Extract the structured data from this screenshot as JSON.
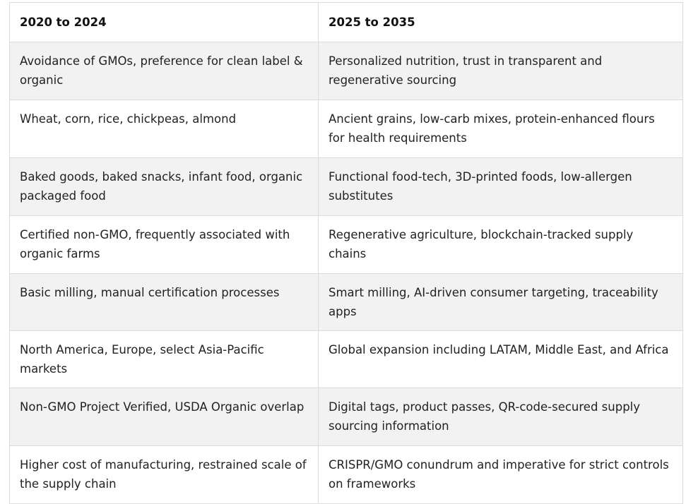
{
  "table": {
    "headers": [
      "2020 to 2024",
      "2025 to 2035"
    ],
    "rows": [
      [
        "Avoidance of GMOs, preference for clean label & organic",
        "Personalized nutrition, trust in transparent and regenerative sourcing"
      ],
      [
        "Wheat, corn, rice, chickpeas, almond",
        "Ancient grains, low-carb mixes, protein-enhanced flours for health requirements"
      ],
      [
        "Baked goods, baked snacks, infant food, organic packaged food",
        "Functional food-tech, 3D-printed foods, low-allergen substitutes"
      ],
      [
        "Certified non-GMO, frequently associated with organic farms",
        "Regenerative agriculture, blockchain-tracked supply chains"
      ],
      [
        "Basic milling, manual certification processes",
        "Smart milling, AI-driven consumer targeting, traceability apps"
      ],
      [
        "North America, Europe, select Asia-Pacific markets",
        "Global expansion including LATAM, Middle East, and Africa"
      ],
      [
        "Non-GMO Project Verified, USDA Organic overlap",
        "Digital tags, product passes, QR-code-secured supply sourcing information"
      ],
      [
        "Higher cost of manufacturing, restrained scale of the supply chain",
        "CRISPR/GMO conundrum and imperative for strict controls on frameworks"
      ]
    ]
  }
}
